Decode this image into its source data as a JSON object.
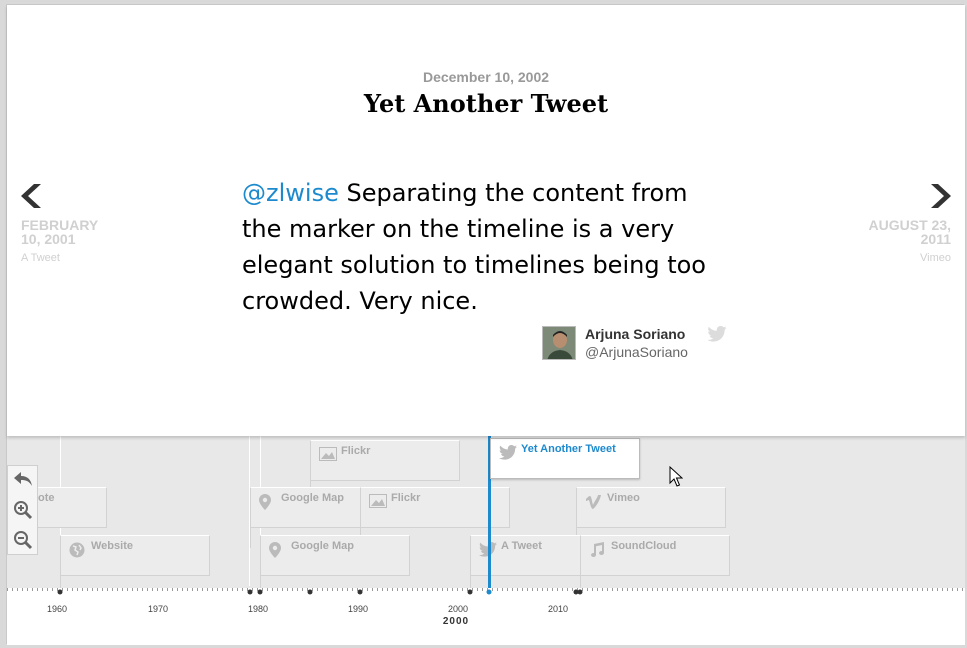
{
  "slide": {
    "date": "December 10, 2002",
    "headline": "Yet Another Tweet",
    "mention": "@zlwise",
    "tweet_text": " Separating the content from the marker on the timeline is a very elegant solution to timelines being too crowded. Very nice.",
    "author_name": "Arjuna Soriano",
    "author_handle": "@ArjunaSoriano"
  },
  "nav": {
    "prev": {
      "date": "FEBRUARY 10, 2001",
      "title": "A Tweet"
    },
    "next": {
      "date": "AUGUST 23, 2011",
      "title": "Vimeo"
    }
  },
  "markers": [
    {
      "label": "ote",
      "icon": "none-icon"
    },
    {
      "label": "Website",
      "icon": "globe-icon"
    },
    {
      "label": "Flickr",
      "icon": "image-icon"
    },
    {
      "label": "Google Map",
      "icon": "map-pin-icon"
    },
    {
      "label": "Flickr",
      "icon": "image-icon"
    },
    {
      "label": "Google Map",
      "icon": "map-pin-icon"
    },
    {
      "label": "Yet Another Tweet",
      "icon": "twitter-icon"
    },
    {
      "label": "A Tweet",
      "icon": "twitter-icon"
    },
    {
      "label": "Vimeo",
      "icon": "vimeo-icon"
    },
    {
      "label": "SoundCloud",
      "icon": "music-icon"
    }
  ],
  "axis": {
    "years": [
      "1960",
      "1970",
      "1980",
      "1990",
      "2000",
      "2010"
    ],
    "era": "2000"
  },
  "colors": {
    "accent": "#1d8ace",
    "muted": "#d0d0d0"
  }
}
